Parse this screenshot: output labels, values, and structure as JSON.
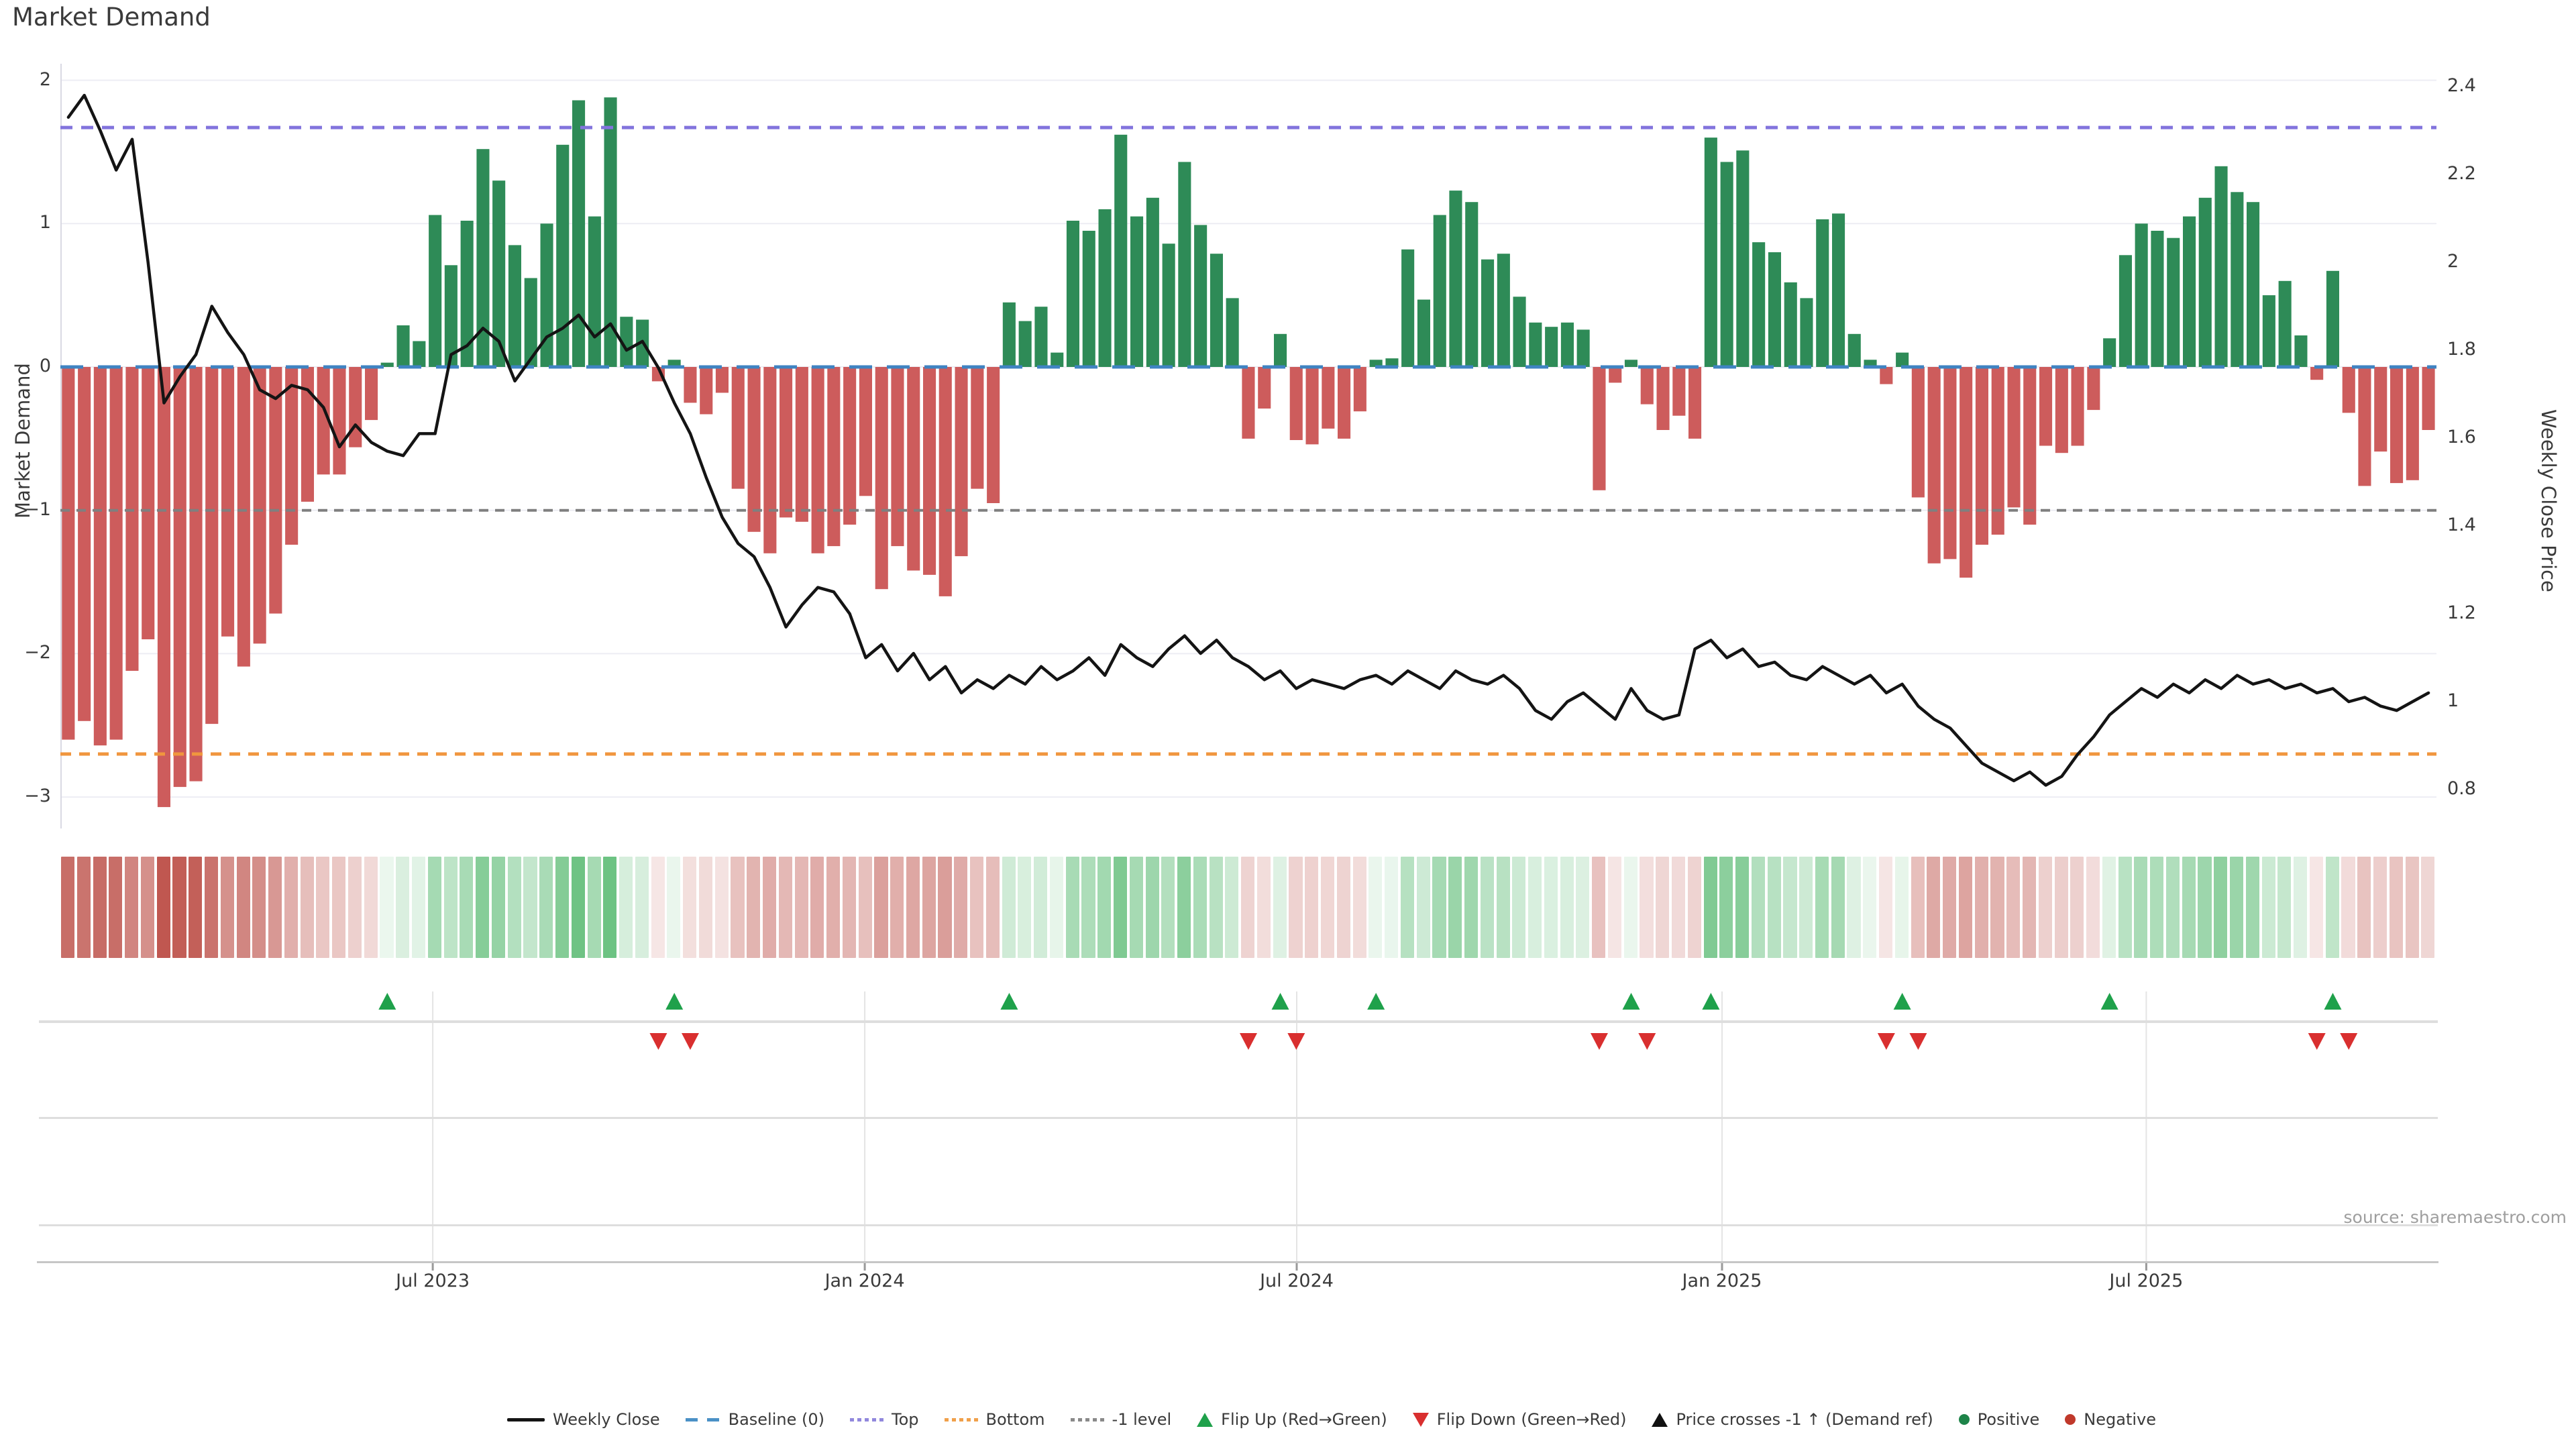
{
  "title": "Market Demand",
  "source": "source: sharemaestro.com",
  "colors": {
    "bar_positive": "#2e8b57",
    "bar_negative": "#cd5c5c",
    "price_line": "#141414",
    "baseline": "#3f83c2",
    "top_line": "#8274dd",
    "bottom_line": "#f0963e",
    "minus_one_line": "#7f7f7f",
    "flip_up": "#1fa14b",
    "flip_down": "#d92f2f",
    "price_cross": "#111111",
    "positive_dot": "#1e8449",
    "negative_dot": "#c0392b",
    "heat_pos_max": "#6cc282",
    "heat_neg_max": "#bf564f",
    "grid": "#ededf4",
    "spine": "#d9d9e3",
    "panel_vline": "#e4e4e4",
    "axis_text": "#3a3a3a"
  },
  "chart_data": {
    "type": "bar+line",
    "n_weeks": 149,
    "left_axis": {
      "label": "Market Demand",
      "ticks": [
        "2",
        "1",
        "0",
        "−1",
        "−2",
        "−3"
      ],
      "tick_values": [
        2,
        1,
        0,
        -1,
        -2,
        -3
      ],
      "range": [
        -3.22,
        2.115
      ]
    },
    "right_axis": {
      "label": "Weekly Close Price",
      "ticks": [
        "2.4",
        "2.2",
        "2",
        "1.8",
        "1.6",
        "1.4",
        "1.2",
        "1",
        "0.8"
      ],
      "tick_values": [
        2.4,
        2.2,
        2.0,
        1.8,
        1.6,
        1.4,
        1.2,
        1.0,
        0.8
      ],
      "range": [
        0.76,
        2.45
      ]
    },
    "x_axis": {
      "tick_labels": [
        "Jul 2023",
        "Jan 2024",
        "Jul 2024",
        "Jan 2025",
        "Jul 2025"
      ],
      "tick_weeks": [
        23.35,
        50.44,
        77.53,
        104.2,
        130.8
      ]
    },
    "reference_lines": {
      "baseline": {
        "label": "Baseline (0)",
        "value": 0,
        "axis": "left"
      },
      "top": {
        "label": "Top",
        "value": 1.67,
        "axis": "left"
      },
      "bottom": {
        "label": "Bottom",
        "value": -2.7,
        "axis": "left"
      },
      "minus_one": {
        "label": "-1 level",
        "value": -1,
        "axis": "left"
      }
    },
    "series": [
      {
        "name": "Market Demand",
        "type": "bar",
        "axis": "left",
        "values": [
          -2.6,
          -2.47,
          -2.64,
          -2.6,
          -2.12,
          -1.9,
          -3.07,
          -2.93,
          -2.89,
          -2.49,
          -1.88,
          -2.09,
          -1.93,
          -1.72,
          -1.24,
          -0.94,
          -0.75,
          -0.75,
          -0.56,
          -0.37,
          0.03,
          0.29,
          0.18,
          1.06,
          0.71,
          1.02,
          1.52,
          1.3,
          0.85,
          0.62,
          1.0,
          1.55,
          1.86,
          1.05,
          1.88,
          0.35,
          0.33,
          -0.1,
          0.05,
          -0.25,
          -0.33,
          -0.18,
          -0.85,
          -1.15,
          -1.3,
          -1.05,
          -1.08,
          -1.3,
          -1.25,
          -1.1,
          -0.9,
          -1.55,
          -1.25,
          -1.42,
          -1.45,
          -1.6,
          -1.32,
          -0.85,
          -0.95,
          0.45,
          0.32,
          0.42,
          0.1,
          1.02,
          0.95,
          1.1,
          1.62,
          1.05,
          1.18,
          0.86,
          1.43,
          0.99,
          0.79,
          0.48,
          -0.5,
          -0.29,
          0.23,
          -0.51,
          -0.54,
          -0.43,
          -0.5,
          -0.31,
          0.05,
          0.06,
          0.82,
          0.47,
          1.06,
          1.23,
          1.15,
          0.75,
          0.79,
          0.49,
          0.31,
          0.28,
          0.31,
          0.26,
          -0.86,
          -0.11,
          0.05,
          -0.26,
          -0.44,
          -0.34,
          -0.5,
          1.6,
          1.43,
          1.51,
          0.87,
          0.8,
          0.59,
          0.48,
          1.03,
          1.07,
          0.23,
          0.05,
          -0.12,
          0.1,
          -0.91,
          -1.37,
          -1.34,
          -1.47,
          -1.24,
          -1.17,
          -0.98,
          -1.1,
          -0.55,
          -0.6,
          -0.55,
          -0.3,
          0.2,
          0.78,
          1.0,
          0.95,
          0.9,
          1.05,
          1.18,
          1.4,
          1.22,
          1.15,
          0.5,
          0.6,
          0.22,
          -0.09,
          0.67,
          -0.32,
          -0.83,
          -0.59,
          -0.81,
          -0.79,
          -0.44
        ]
      },
      {
        "name": "Weekly Close",
        "type": "line",
        "axis": "right",
        "values": [
          2.33,
          2.38,
          2.3,
          2.21,
          2.28,
          2.0,
          1.68,
          1.74,
          1.79,
          1.9,
          1.84,
          1.79,
          1.71,
          1.69,
          1.72,
          1.71,
          1.67,
          1.58,
          1.63,
          1.59,
          1.57,
          1.56,
          1.61,
          1.61,
          1.79,
          1.81,
          1.85,
          1.82,
          1.73,
          1.78,
          1.83,
          1.85,
          1.88,
          1.83,
          1.86,
          1.8,
          1.82,
          1.76,
          1.68,
          1.61,
          1.51,
          1.42,
          1.36,
          1.33,
          1.26,
          1.17,
          1.22,
          1.26,
          1.25,
          1.2,
          1.1,
          1.13,
          1.07,
          1.11,
          1.05,
          1.08,
          1.02,
          1.05,
          1.03,
          1.06,
          1.04,
          1.08,
          1.05,
          1.07,
          1.1,
          1.06,
          1.13,
          1.1,
          1.08,
          1.12,
          1.15,
          1.11,
          1.14,
          1.1,
          1.08,
          1.05,
          1.07,
          1.03,
          1.05,
          1.04,
          1.03,
          1.05,
          1.06,
          1.04,
          1.07,
          1.05,
          1.03,
          1.07,
          1.05,
          1.04,
          1.06,
          1.03,
          0.98,
          0.96,
          1.0,
          1.02,
          0.99,
          0.96,
          1.03,
          0.98,
          0.96,
          0.97,
          1.12,
          1.14,
          1.1,
          1.12,
          1.08,
          1.09,
          1.06,
          1.05,
          1.08,
          1.06,
          1.04,
          1.06,
          1.02,
          1.04,
          0.99,
          0.96,
          0.94,
          0.9,
          0.86,
          0.84,
          0.82,
          0.84,
          0.81,
          0.83,
          0.88,
          0.92,
          0.97,
          1.0,
          1.03,
          1.01,
          1.04,
          1.02,
          1.05,
          1.03,
          1.06,
          1.04,
          1.05,
          1.03,
          1.04,
          1.02,
          1.03,
          1.0,
          1.01,
          0.99,
          0.98,
          1.0,
          1.02
        ]
      }
    ],
    "flip_up_indices": [
      20,
      38,
      59,
      76,
      82,
      98,
      103,
      115,
      128,
      142
    ],
    "flip_down_indices": [
      37,
      39,
      74,
      77,
      96,
      99,
      114,
      116,
      141,
      143
    ],
    "price_cross_indices": []
  },
  "legend": {
    "items": [
      {
        "label": "Weekly Close",
        "glyph": "line",
        "color": "#141414"
      },
      {
        "label": "Baseline (0)",
        "glyph": "dashes",
        "color": "#4a90c6"
      },
      {
        "label": "Top",
        "glyph": "dots",
        "color": "#9188dd"
      },
      {
        "label": "Bottom",
        "glyph": "dots",
        "color": "#f0a04a"
      },
      {
        "label": "-1 level",
        "glyph": "dots",
        "color": "#8a8a8a"
      },
      {
        "label": "Flip Up (Red→Green)",
        "glyph": "triangle-up",
        "color": "#1fa14b"
      },
      {
        "label": "Flip Down (Green→Red)",
        "glyph": "triangle-down",
        "color": "#d92f2f"
      },
      {
        "label": "Price crosses -1 ↑ (Demand ref)",
        "glyph": "triangle-up",
        "color": "#111111"
      },
      {
        "label": "Positive",
        "glyph": "dot",
        "color": "#1e8449"
      },
      {
        "label": "Negative",
        "glyph": "dot",
        "color": "#c0392b"
      }
    ]
  }
}
